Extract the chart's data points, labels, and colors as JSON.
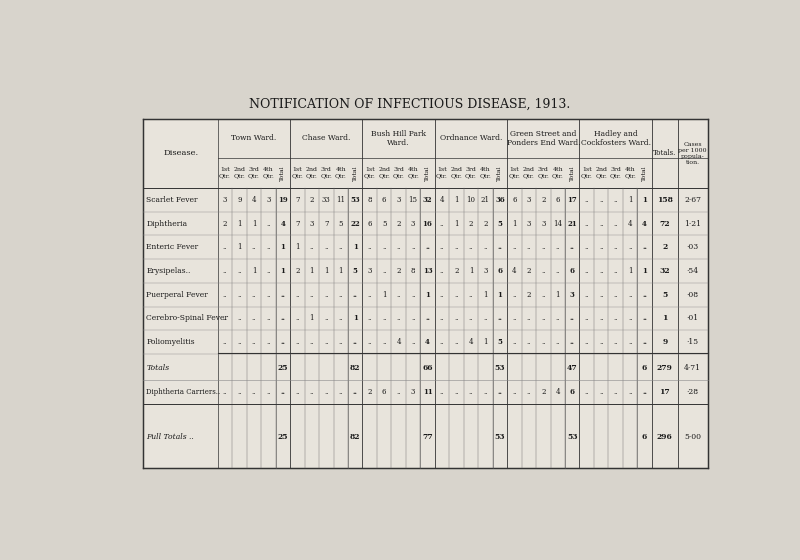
{
  "title": "NOTIFICATION OF INFECTIOUS DISEASE, 1913.",
  "bg_color": "#d8d4cc",
  "table_bg": "#e8e4dc",
  "ward_headers": [
    "Town Ward.",
    "Chase Ward.",
    "Bush Hill Park\nWard.",
    "Ordnance Ward.",
    "Green Street and\nPonders End Ward.",
    "Hadley and\nCockfosters Ward."
  ],
  "sub_labels": [
    "1st\nQtr.",
    "2nd\nQtr.",
    "3rd\nQtr.",
    "4th\nQtr.",
    "Total"
  ],
  "diseases": [
    "Scarlet Fever",
    "Diphtheria",
    "Enteric Fever",
    "Erysipelas..",
    "Puerperal Fever",
    "Cerebro-Spinal Fever",
    "Poliomyelitis"
  ],
  "data": [
    [
      "3",
      "9",
      "4",
      "3",
      "19",
      "7",
      "2",
      "33",
      "11",
      "53",
      "8",
      "6",
      "3",
      "15",
      "32",
      "4",
      "1",
      "10",
      "21",
      "36",
      "6",
      "3",
      "2",
      "6",
      "17",
      "..",
      "..",
      "..",
      "1",
      "1",
      "158",
      "2·67"
    ],
    [
      "2",
      "1",
      "1",
      "..",
      "4",
      "7",
      "3",
      "7",
      "5",
      "22",
      "6",
      "5",
      "2",
      "3",
      "16",
      "..",
      "1",
      "2",
      "2",
      "5",
      "1",
      "3",
      "3",
      "14",
      "21",
      "..",
      "..",
      "..",
      "4",
      "4",
      "72",
      "1·21"
    ],
    [
      "..",
      "1",
      "..",
      "..",
      "1",
      "1",
      "..",
      "..",
      "..",
      "1",
      "..",
      "..",
      "..",
      "..",
      "..",
      "..",
      "..",
      "..",
      "..",
      "..",
      "..",
      "..",
      "..",
      "..",
      "..",
      "..",
      "..",
      "..",
      "..",
      "..",
      "2",
      "·03"
    ],
    [
      "..",
      "..",
      "1",
      "..",
      "1",
      "2",
      "1",
      "1",
      "1",
      "5",
      "3",
      "..",
      "2",
      "8",
      "13",
      "..",
      "2",
      "1",
      "3",
      "6",
      "4",
      "2",
      "..",
      "..",
      "6",
      "..",
      "..",
      "..",
      "1",
      "1",
      "32",
      "·54"
    ],
    [
      "..",
      "..",
      "..",
      "..",
      "..",
      "..",
      "..",
      "..",
      "..",
      "..",
      "..",
      "1",
      "..",
      "..",
      "1",
      "..",
      "..",
      "..",
      "1",
      "1",
      "..",
      "2",
      "..",
      "1",
      "3",
      "..",
      "..",
      "..",
      "..",
      "..",
      "5",
      "·08"
    ],
    [
      "..",
      "..",
      "..",
      "..",
      "..",
      "..",
      "1",
      "..",
      "..",
      "1",
      "..",
      "..",
      "..",
      "..",
      "..",
      "..",
      "..",
      "..",
      "..",
      "..",
      "..",
      "..",
      "..",
      "..",
      "..",
      "..",
      "..",
      "..",
      "..",
      "..",
      "1",
      "·01"
    ],
    [
      "..",
      "..",
      "..",
      "..",
      "..",
      "..",
      "..",
      "..",
      "..",
      "..",
      "..",
      "..",
      "4",
      "..",
      "4",
      "..",
      "..",
      "4",
      "1",
      "5",
      "..",
      "..",
      "..",
      "..",
      "..",
      "..",
      "..",
      "..",
      "..",
      "..",
      "9",
      "·15"
    ]
  ],
  "totals_row": [
    "25",
    "82",
    "66",
    "53",
    "47",
    "6",
    "279",
    "4·71"
  ],
  "carriers_row": [
    "..",
    "..",
    "..",
    "..",
    "..",
    "..",
    "..",
    "..",
    "..",
    "..",
    "2",
    "6",
    "..",
    "3",
    "11",
    "..",
    "..",
    "..",
    "..",
    "..",
    "..",
    "..",
    "2",
    "4",
    "6",
    "..",
    "..",
    "..",
    "..",
    "..",
    "17",
    "·28"
  ],
  "full_totals_row": [
    "25",
    "82",
    "77",
    "53",
    "53",
    "6",
    "296",
    "5·00"
  ]
}
